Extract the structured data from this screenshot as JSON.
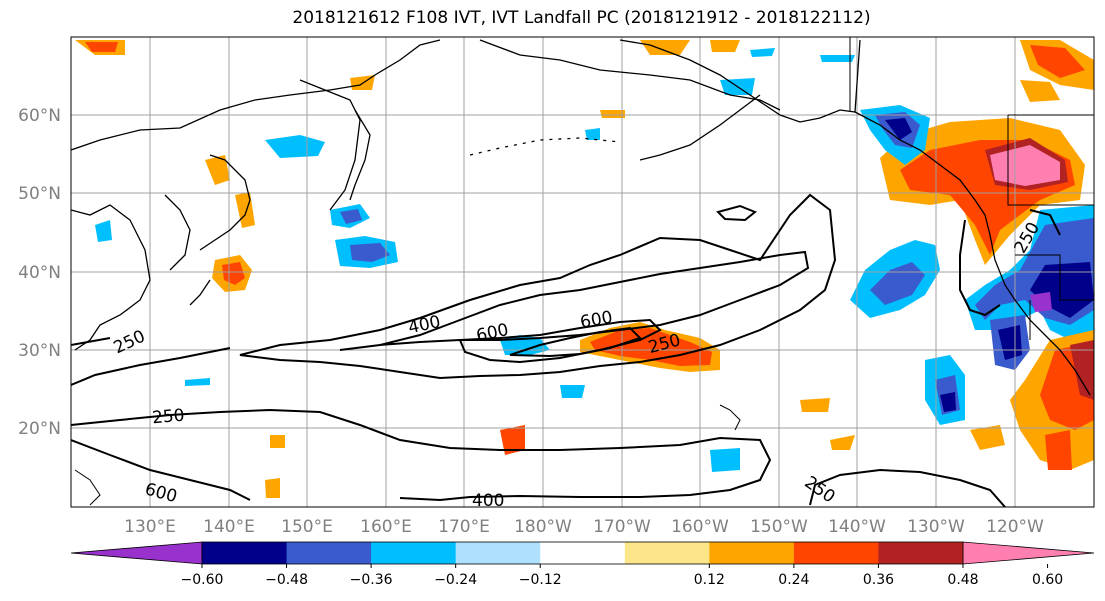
{
  "title": "2018121612 F108 IVT, IVT Landfall PC (2018121912 - 2018122112)",
  "lat_labels": [
    "60°N",
    "50°N",
    "40°N",
    "30°N",
    "20°N"
  ],
  "lon_labels": [
    "130°E",
    "140°E",
    "150°E",
    "160°E",
    "170°E",
    "180°W",
    "170°W",
    "160°W",
    "150°W",
    "140°W",
    "130°W",
    "120°W"
  ],
  "contour_labels": [
    "250",
    "250",
    "400",
    "600",
    "600",
    "250",
    "250",
    "600",
    "400",
    "250"
  ],
  "colorbar": {
    "ticks": [
      "−0.60",
      "−0.48",
      "−0.36",
      "−0.24",
      "−0.12",
      "0.12",
      "0.24",
      "0.36",
      "0.48",
      "0.60"
    ],
    "colors": [
      "#9932cc",
      "#00008b",
      "#3a5bcd",
      "#00bfff",
      "#afe0fe",
      "#ffffff",
      "#fde68a",
      "#ffa500",
      "#ff4500",
      "#b22222",
      "#ff80b0"
    ]
  }
}
